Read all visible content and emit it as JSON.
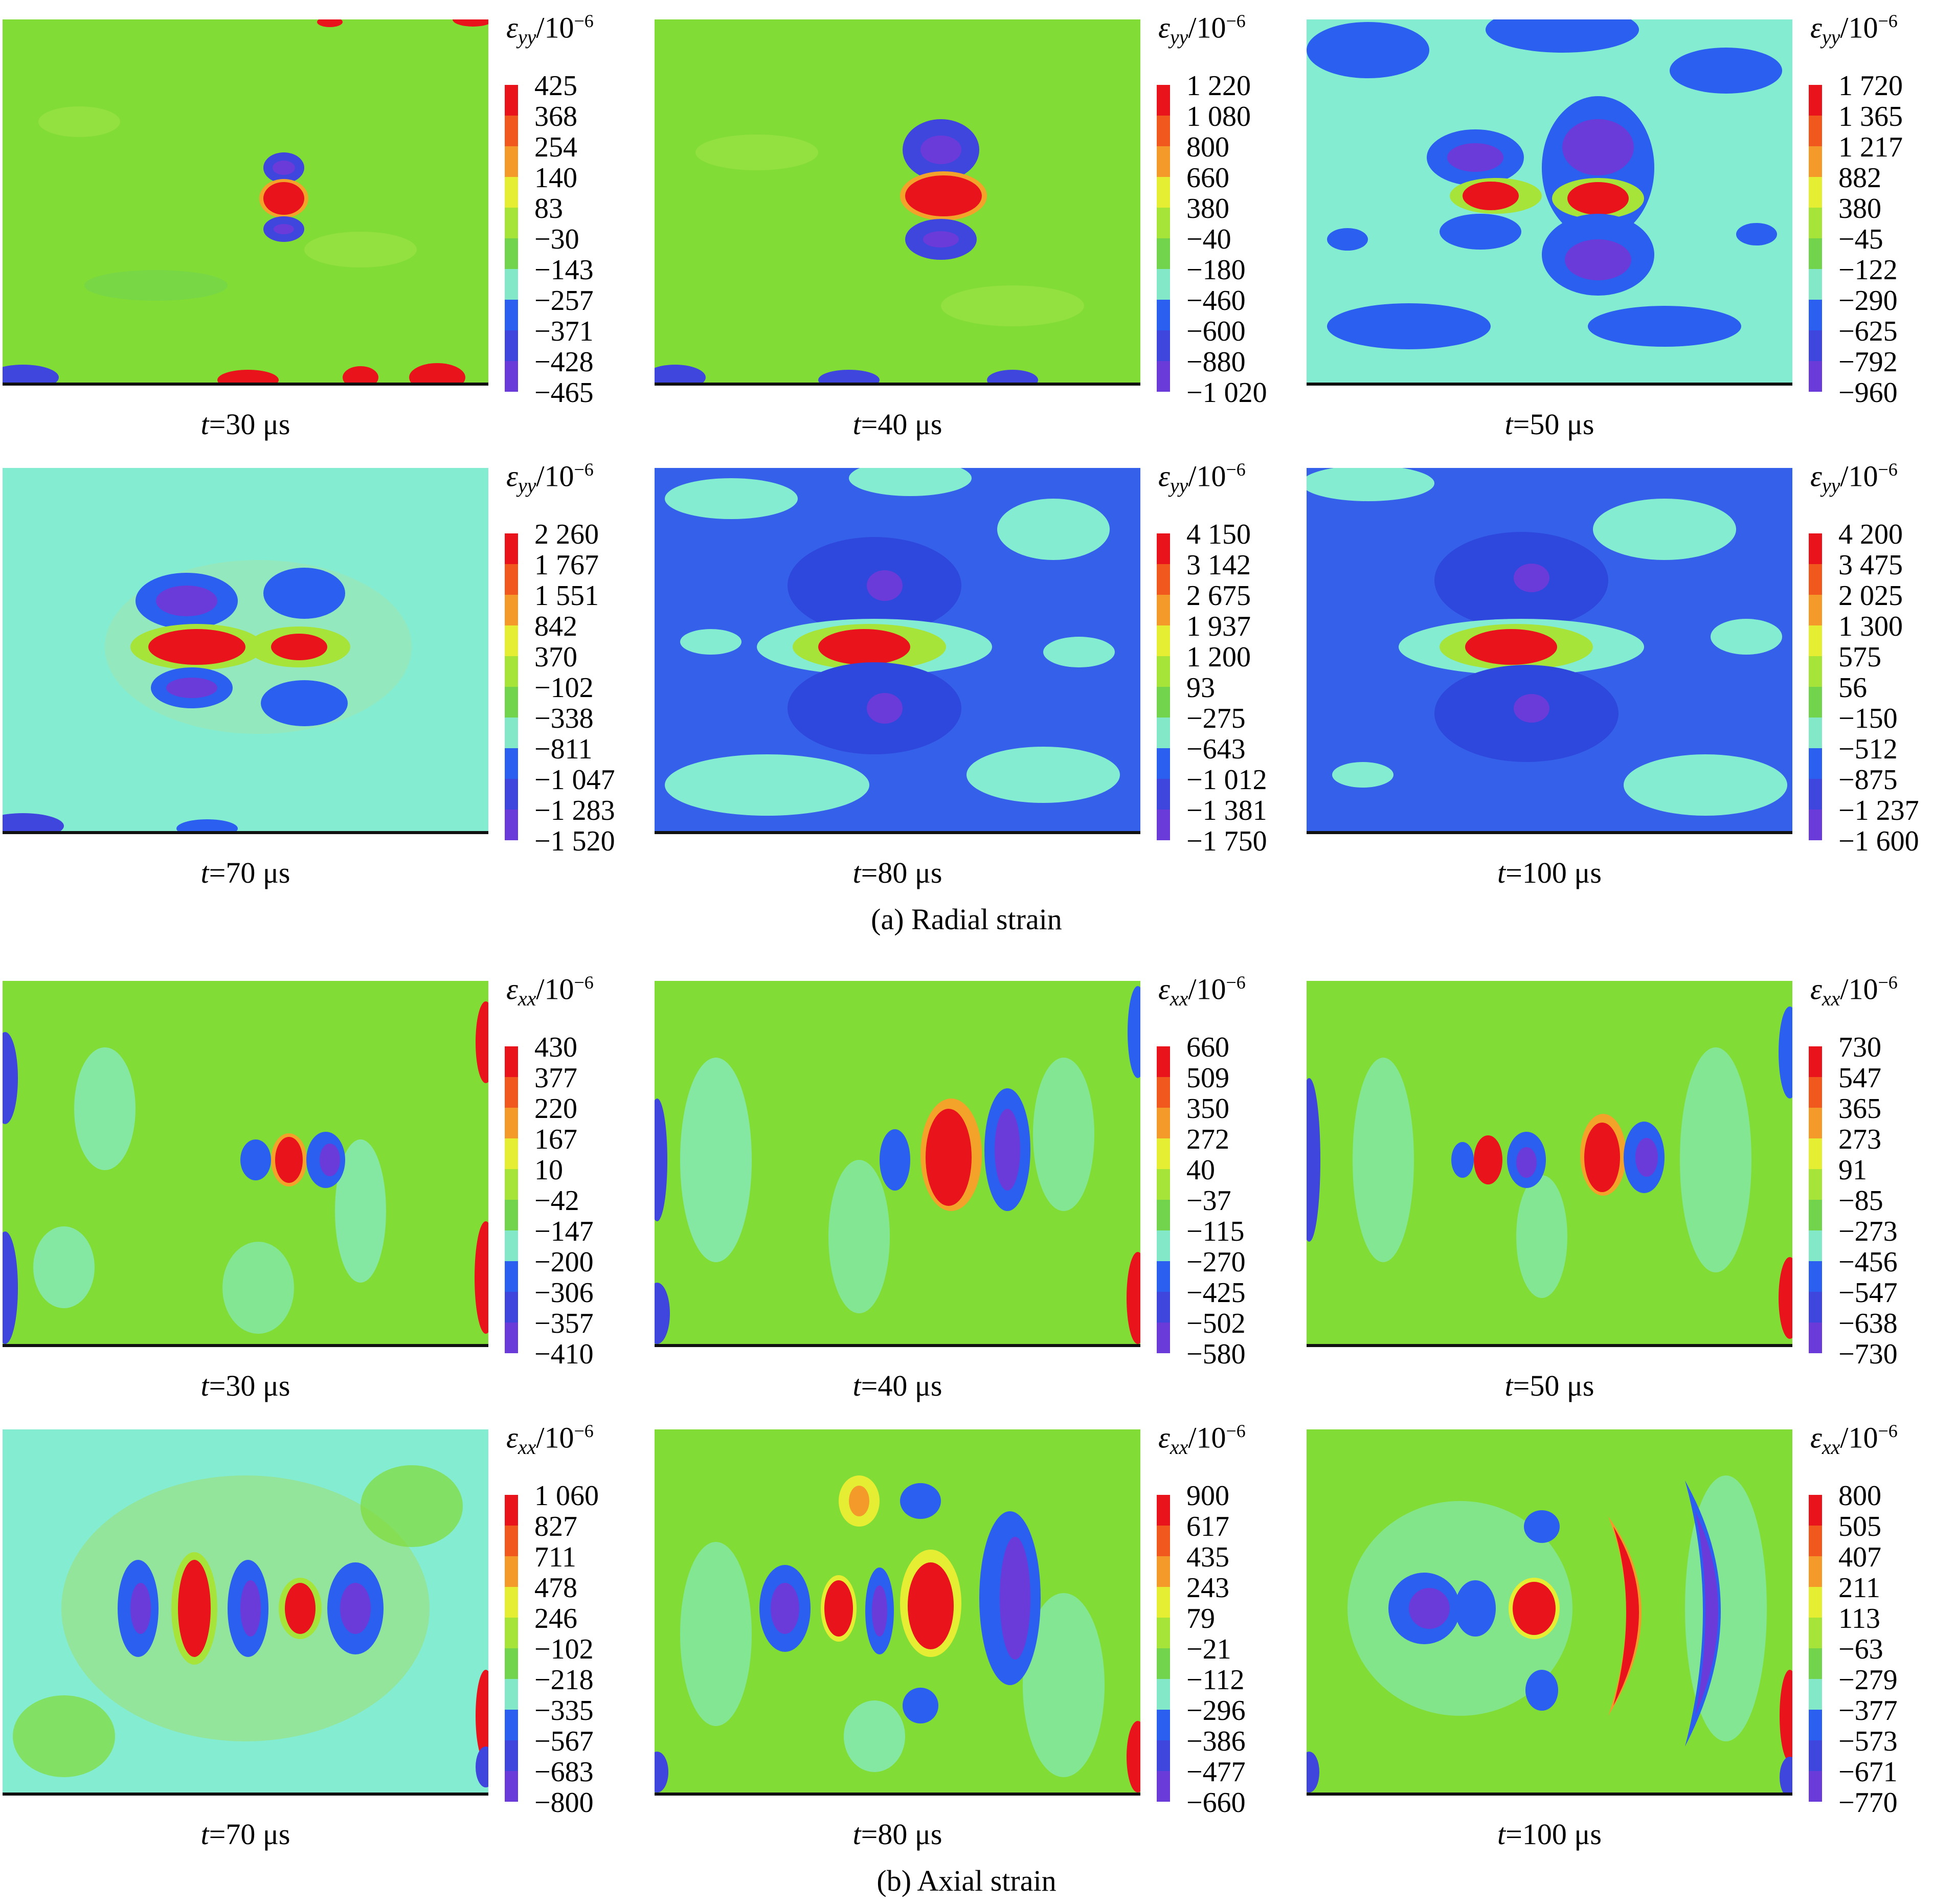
{
  "colors": {
    "background": "#82dc36",
    "levels_high_to_low": [
      "#e8131b",
      "#f0581d",
      "#f39a2a",
      "#e6ee33",
      "#a7e43a",
      "#72d34d",
      "#82e8c8",
      "#2a5ff0",
      "#3f46de",
      "#6a3bd8"
    ],
    "spot_red": "#ee1818",
    "spot_blue": "#2f3fe0",
    "spot_purple": "#6e36d8",
    "cyan": "#84ecd0",
    "dark_blue": "#3561ea"
  },
  "captions": {
    "radial": "(a) Radial strain",
    "axial": "(b) Axial strain"
  },
  "panels": [
    {
      "id": "yy30",
      "group": "radial",
      "quantity": "ε",
      "sub": "yy",
      "unit": "/10",
      "exp": "−6",
      "time_prefix": "t",
      "time_value": "=30 μs",
      "ticks": [
        "425",
        "368",
        "254",
        "140",
        "83",
        "−30",
        "−143",
        "−257",
        "−371",
        "−428",
        "−465"
      ]
    },
    {
      "id": "yy40",
      "group": "radial",
      "quantity": "ε",
      "sub": "yy",
      "unit": "/10",
      "exp": "−6",
      "time_prefix": "t",
      "time_value": "=40 μs",
      "ticks": [
        "1 220",
        "1 080",
        "800",
        "660",
        "380",
        "−40",
        "−180",
        "−460",
        "−600",
        "−880",
        "−1 020"
      ]
    },
    {
      "id": "yy50",
      "group": "radial",
      "quantity": "ε",
      "sub": "yy",
      "unit": "/10",
      "exp": "−6",
      "time_prefix": "t",
      "time_value": "=50 μs",
      "ticks": [
        "1 720",
        "1 365",
        "1 217",
        "882",
        "380",
        "−45",
        "−122",
        "−290",
        "−625",
        "−792",
        "−960"
      ]
    },
    {
      "id": "yy70",
      "group": "radial",
      "quantity": "ε",
      "sub": "yy",
      "unit": "/10",
      "exp": "−6",
      "time_prefix": "t",
      "time_value": "=70 μs",
      "ticks": [
        "2 260",
        "1 767",
        "1 551",
        "842",
        "370",
        "−102",
        "−338",
        "−811",
        "−1 047",
        "−1 283",
        "−1 520"
      ]
    },
    {
      "id": "yy80",
      "group": "radial",
      "quantity": "ε",
      "sub": "yy",
      "unit": "/10",
      "exp": "−6",
      "time_prefix": "t",
      "time_value": "=80 μs",
      "ticks": [
        "4 150",
        "3 142",
        "2 675",
        "1 937",
        "1 200",
        "93",
        "−275",
        "−643",
        "−1 012",
        "−1 381",
        "−1 750"
      ]
    },
    {
      "id": "yy100",
      "group": "radial",
      "quantity": "ε",
      "sub": "yy",
      "unit": "/10",
      "exp": "−6",
      "time_prefix": "t",
      "time_value": "=100 μs",
      "ticks": [
        "4 200",
        "3 475",
        "2 025",
        "1 300",
        "575",
        "56",
        "−150",
        "−512",
        "−875",
        "−1 237",
        "−1 600"
      ]
    },
    {
      "id": "xx30",
      "group": "axial",
      "quantity": "ε",
      "sub": "xx",
      "unit": "/10",
      "exp": "−6",
      "time_prefix": "t",
      "time_value": "=30 μs",
      "ticks": [
        "430",
        "377",
        "220",
        "167",
        "10",
        "−42",
        "−147",
        "−200",
        "−306",
        "−357",
        "−410"
      ]
    },
    {
      "id": "xx40",
      "group": "axial",
      "quantity": "ε",
      "sub": "xx",
      "unit": "/10",
      "exp": "−6",
      "time_prefix": "t",
      "time_value": "=40 μs",
      "ticks": [
        "660",
        "509",
        "350",
        "272",
        "40",
        "−37",
        "−115",
        "−270",
        "−425",
        "−502",
        "−580"
      ]
    },
    {
      "id": "xx50",
      "group": "axial",
      "quantity": "ε",
      "sub": "xx",
      "unit": "/10",
      "exp": "−6",
      "time_prefix": "t",
      "time_value": "=50 μs",
      "ticks": [
        "730",
        "547",
        "365",
        "273",
        "91",
        "−85",
        "−273",
        "−456",
        "−547",
        "−638",
        "−730"
      ]
    },
    {
      "id": "xx70",
      "group": "axial",
      "quantity": "ε",
      "sub": "xx",
      "unit": "/10",
      "exp": "−6",
      "time_prefix": "t",
      "time_value": "=70 μs",
      "ticks": [
        "1 060",
        "827",
        "711",
        "478",
        "246",
        "−102",
        "−218",
        "−335",
        "−567",
        "−683",
        "−800"
      ]
    },
    {
      "id": "xx80",
      "group": "axial",
      "quantity": "ε",
      "sub": "xx",
      "unit": "/10",
      "exp": "−6",
      "time_prefix": "t",
      "time_value": "=80 μs",
      "ticks": [
        "900",
        "617",
        "435",
        "243",
        "79",
        "−21",
        "−112",
        "−296",
        "−386",
        "−477",
        "−660"
      ]
    },
    {
      "id": "xx100",
      "group": "axial",
      "quantity": "ε",
      "sub": "xx",
      "unit": "/10",
      "exp": "−6",
      "time_prefix": "t",
      "time_value": "=100 μs",
      "ticks": [
        "800",
        "505",
        "407",
        "211",
        "113",
        "−63",
        "−279",
        "−377",
        "−573",
        "−671",
        "−770"
      ]
    }
  ]
}
